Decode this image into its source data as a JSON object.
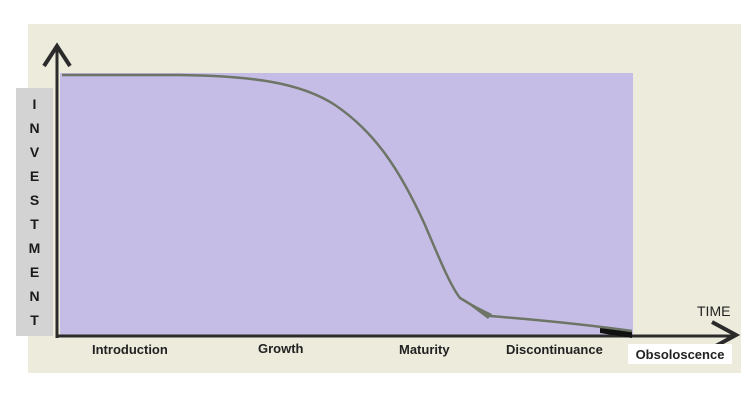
{
  "y_axis": {
    "letters": [
      "I",
      "N",
      "V",
      "E",
      "S",
      "T",
      "M",
      "E",
      "N",
      "T"
    ]
  },
  "x_axis": {
    "label": "TIME"
  },
  "stages": [
    "Introduction",
    "Growth",
    "Maturity",
    "Discontinuance",
    "Obsoloscence"
  ]
}
